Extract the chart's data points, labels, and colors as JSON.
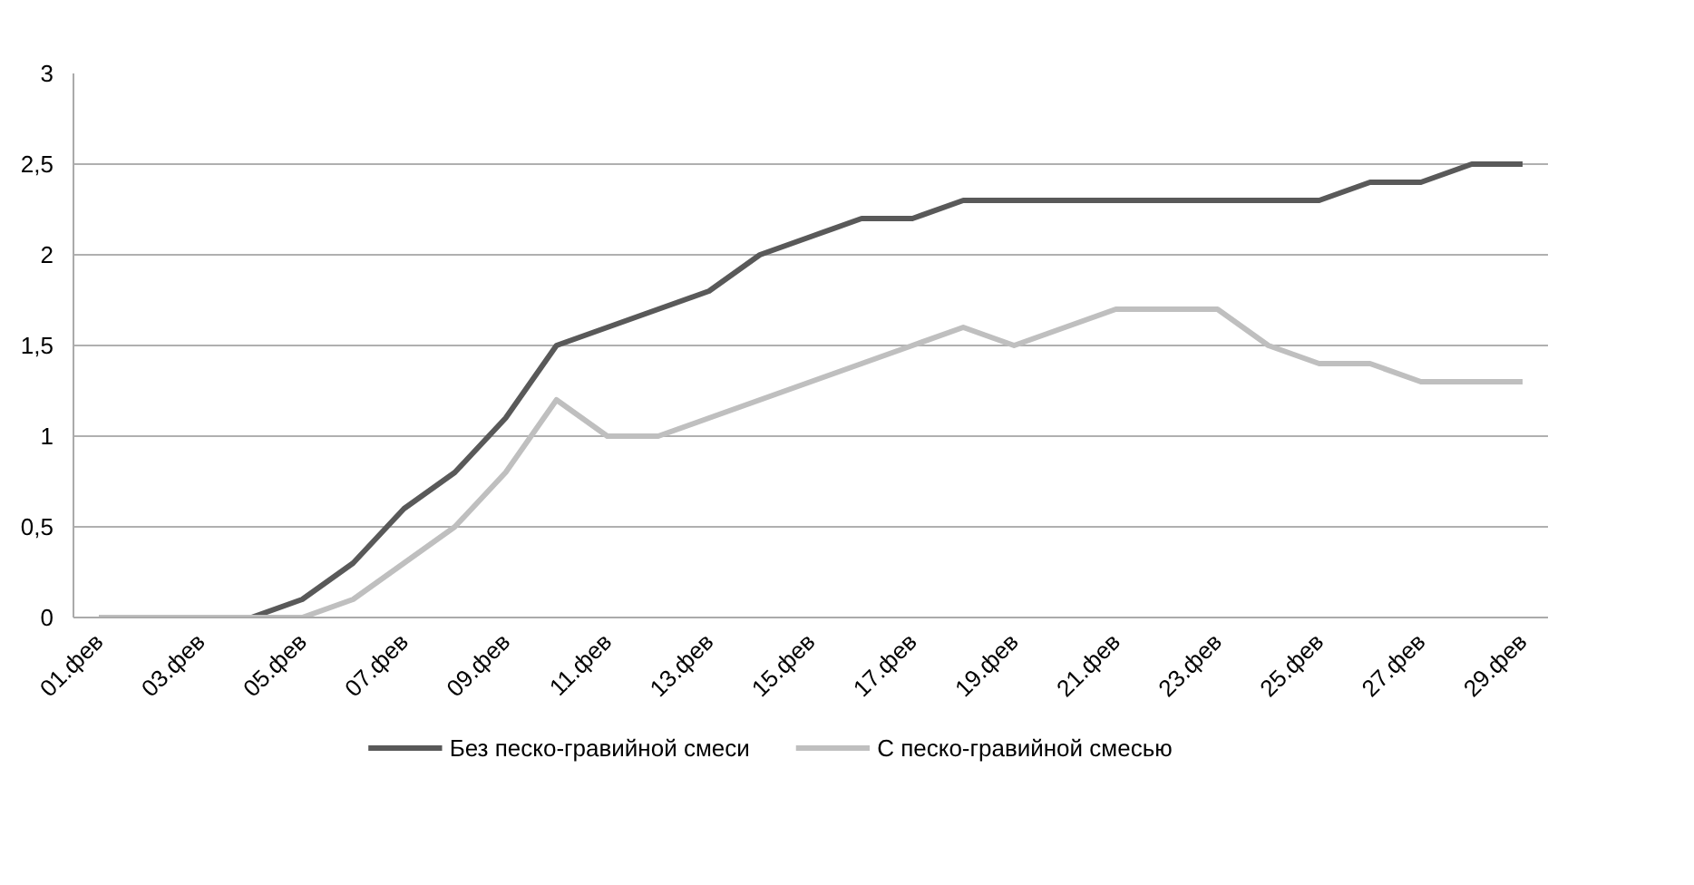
{
  "chart_data": {
    "type": "line",
    "categories": [
      "01.фев",
      null,
      "03.фев",
      null,
      "05.фев",
      null,
      "07.фев",
      null,
      "09.фев",
      null,
      "11.фев",
      null,
      "13.фев",
      null,
      "15.фев",
      null,
      "17.фев",
      null,
      "19.фев",
      null,
      "21.фев",
      null,
      "23.фев",
      null,
      "25.фев",
      null,
      "27.фев",
      null,
      "29.фев"
    ],
    "series": [
      {
        "name": "Без песко-гравийной смеси",
        "color": "#595959",
        "values": [
          0,
          0,
          0,
          0,
          0.1,
          0.3,
          0.6,
          0.8,
          1.1,
          1.5,
          1.6,
          1.7,
          1.8,
          2.0,
          2.1,
          2.2,
          2.2,
          2.3,
          2.3,
          2.3,
          2.3,
          2.3,
          2.3,
          2.3,
          2.3,
          2.4,
          2.4,
          2.5,
          2.5
        ]
      },
      {
        "name": "С песко-гравийной смесью",
        "color": "#bfbfbf",
        "values": [
          0,
          0,
          0,
          0,
          0,
          0.1,
          0.3,
          0.5,
          0.8,
          1.2,
          1.0,
          1.0,
          1.1,
          1.2,
          1.3,
          1.4,
          1.5,
          1.6,
          1.5,
          1.6,
          1.7,
          1.7,
          1.7,
          1.5,
          1.4,
          1.4,
          1.3,
          1.3,
          1.3
        ]
      }
    ],
    "ylim": [
      0,
      3
    ],
    "yticks": [
      0,
      {
        "value": 0.5,
        "label": "0,5"
      },
      1,
      {
        "value": 1.5,
        "label": "1,5"
      },
      2,
      {
        "value": 2.5,
        "label": "2,5"
      },
      3
    ],
    "grid": "y",
    "legend": "bottom",
    "marker": "none",
    "line_style": "solid"
  }
}
